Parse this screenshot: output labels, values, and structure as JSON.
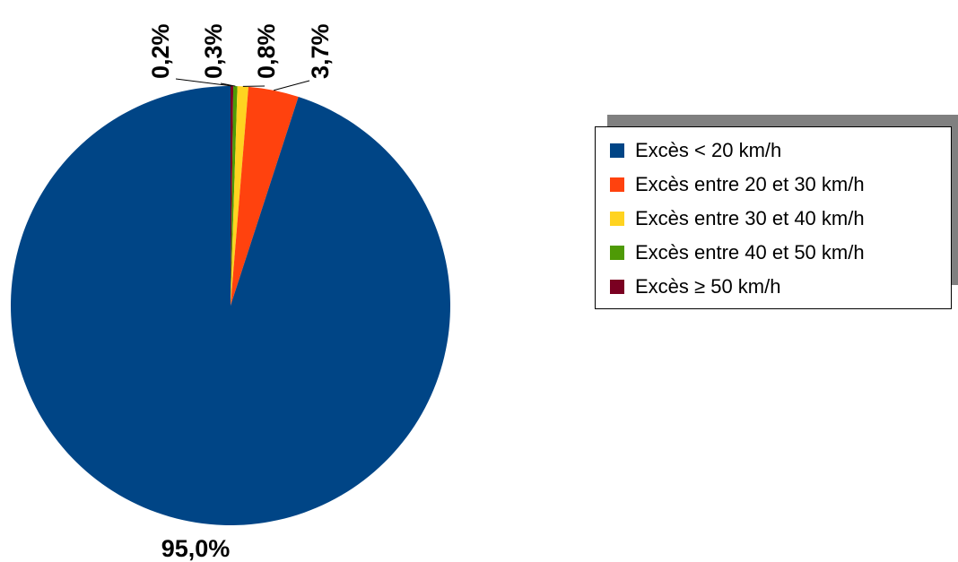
{
  "chart_data": {
    "type": "pie",
    "slices": [
      {
        "label": "Excès ≥ 50 km/h",
        "value": 0.2,
        "display": "0,2%",
        "color": "#7a0021"
      },
      {
        "label": "Excès entre 40 et 50 km/h",
        "value": 0.3,
        "display": "0,3%",
        "color": "#4e9a06"
      },
      {
        "label": "Excès entre 30 et 40 km/h",
        "value": 0.8,
        "display": "0,8%",
        "color": "#ffd320"
      },
      {
        "label": "Excès entre 20 et 30 km/h",
        "value": 3.7,
        "display": "3,7%",
        "color": "#ff420e"
      },
      {
        "label": "Excès < 20 km/h",
        "value": 95.0,
        "display": "95,0%",
        "color": "#004586"
      }
    ],
    "legend": {
      "placement": "right",
      "items": [
        {
          "label": "Excès < 20 km/h",
          "color": "#004586"
        },
        {
          "label": "Excès entre 20 et 30 km/h",
          "color": "#ff420e"
        },
        {
          "label": "Excès entre 30 et 40 km/h",
          "color": "#ffd320"
        },
        {
          "label": "Excès entre 40 et 50 km/h",
          "color": "#4e9a06"
        },
        {
          "label": "Excès ≥ 50 km/h",
          "color": "#7a0021"
        }
      ]
    }
  }
}
